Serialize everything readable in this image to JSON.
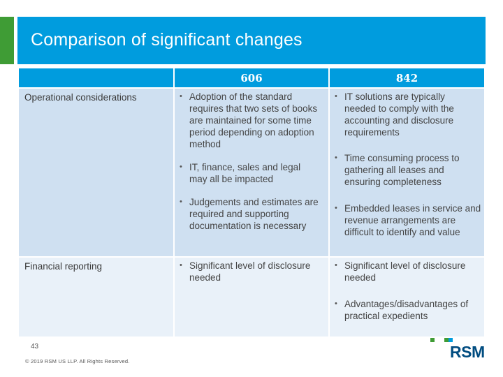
{
  "slide": {
    "title": "Comparison of significant changes"
  },
  "table": {
    "columns": [
      "",
      "606",
      "842"
    ],
    "rows": [
      {
        "label": "Operational considerations",
        "col606": [
          "Adoption of the standard requires that two sets of books are maintained for some time period depending on adoption method",
          "IT, finance, sales and legal may all be impacted",
          "Judgements and estimates are required and supporting documentation is necessary"
        ],
        "col842": [
          "IT solutions are typically needed to comply with the accounting and disclosure requirements",
          "Time consuming process to gathering all leases and ensuring completeness",
          "Embedded leases in service and revenue arrangements are difficult to identify and value"
        ]
      },
      {
        "label": "Financial reporting",
        "col606": [
          "Significant level of disclosure needed"
        ],
        "col842": [
          "Significant level of disclosure needed",
          "Advantages/disadvantages of practical expedients"
        ]
      }
    ]
  },
  "footer": {
    "page_number": "43",
    "copyright": "© 2019 RSM US LLP. All Rights Reserved.",
    "logo_text": "RSM"
  },
  "colors": {
    "header_blue": "#009cde",
    "accent_green": "#3f9c35",
    "row_dark": "#cfe0f1",
    "row_light": "#e9f1f9"
  }
}
